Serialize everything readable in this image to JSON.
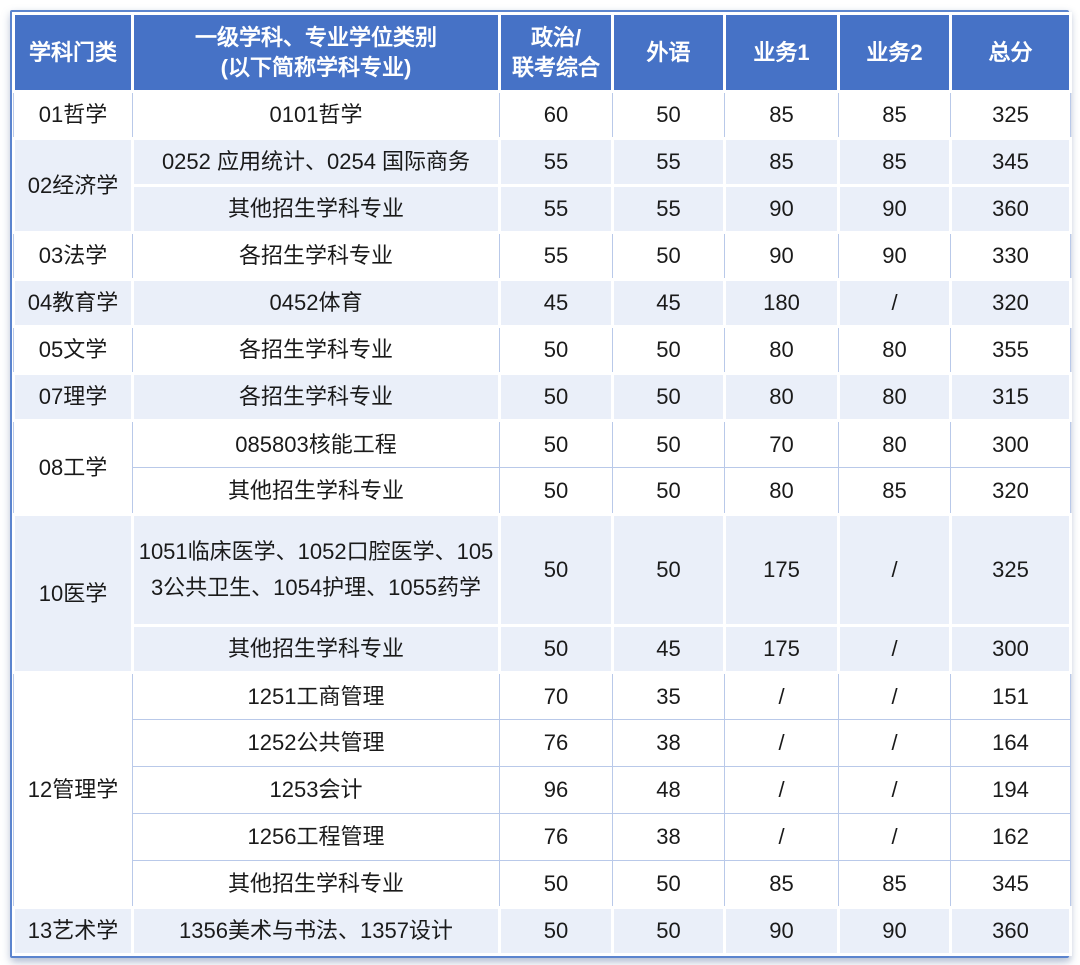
{
  "header": {
    "category": "学科门类",
    "discipline_line1": "一级学科、专业学位类别",
    "discipline_line2": "(以下简称学科专业)",
    "politics_line1": "政治/",
    "politics_line2": "联考综合",
    "foreign": "外语",
    "business1": "业务1",
    "business2": "业务2",
    "total": "总分"
  },
  "colors": {
    "header_bg": "#4672C6",
    "header_text": "#FFFFFF",
    "band_blue": "#EAEFF9",
    "band_white": "#FFFFFF",
    "grid_line": "#B9C9E9",
    "outer_border": "#5B84CE",
    "body_text": "#1A1A1A"
  },
  "chart_data": {
    "type": "table",
    "columns": [
      "学科门类",
      "一级学科、专业学位类别(以下简称学科专业)",
      "政治/联考综合",
      "外语",
      "业务1",
      "业务2",
      "总分"
    ],
    "groups": [
      {
        "category": "01哲学",
        "band": "white",
        "rows": [
          {
            "discipline": "0101哲学",
            "politics": "60",
            "foreign": "50",
            "business1": "85",
            "business2": "85",
            "total": "325"
          }
        ]
      },
      {
        "category": "02经济学",
        "band": "blue",
        "rows": [
          {
            "discipline": "0252 应用统计、0254 国际商务",
            "politics": "55",
            "foreign": "55",
            "business1": "85",
            "business2": "85",
            "total": "345"
          },
          {
            "discipline": "其他招生学科专业",
            "politics": "55",
            "foreign": "55",
            "business1": "90",
            "business2": "90",
            "total": "360"
          }
        ]
      },
      {
        "category": "03法学",
        "band": "white",
        "rows": [
          {
            "discipline": "各招生学科专业",
            "politics": "55",
            "foreign": "50",
            "business1": "90",
            "business2": "90",
            "total": "330"
          }
        ]
      },
      {
        "category": "04教育学",
        "band": "blue",
        "rows": [
          {
            "discipline": "0452体育",
            "politics": "45",
            "foreign": "45",
            "business1": "180",
            "business2": "/",
            "total": "320"
          }
        ]
      },
      {
        "category": "05文学",
        "band": "white",
        "rows": [
          {
            "discipline": "各招生学科专业",
            "politics": "50",
            "foreign": "50",
            "business1": "80",
            "business2": "80",
            "total": "355"
          }
        ]
      },
      {
        "category": "07理学",
        "band": "blue",
        "rows": [
          {
            "discipline": "各招生学科专业",
            "politics": "50",
            "foreign": "50",
            "business1": "80",
            "business2": "80",
            "total": "315"
          }
        ]
      },
      {
        "category": "08工学",
        "band": "white",
        "rows": [
          {
            "discipline": "085803核能工程",
            "politics": "50",
            "foreign": "50",
            "business1": "70",
            "business2": "80",
            "total": "300"
          },
          {
            "discipline": "其他招生学科专业",
            "politics": "50",
            "foreign": "50",
            "business1": "80",
            "business2": "85",
            "total": "320"
          }
        ]
      },
      {
        "category": "10医学",
        "band": "blue",
        "rows": [
          {
            "discipline": "1051临床医学、1052口腔医学、1053公共卫生、1054护理、1055药学",
            "tall": true,
            "politics": "50",
            "foreign": "50",
            "business1": "175",
            "business2": "/",
            "total": "325"
          },
          {
            "discipline": "其他招生学科专业",
            "politics": "50",
            "foreign": "45",
            "business1": "175",
            "business2": "/",
            "total": "300"
          }
        ]
      },
      {
        "category": "12管理学",
        "band": "white",
        "rows": [
          {
            "discipline": "1251工商管理",
            "politics": "70",
            "foreign": "35",
            "business1": "/",
            "business2": "/",
            "total": "151"
          },
          {
            "discipline": "1252公共管理",
            "politics": "76",
            "foreign": "38",
            "business1": "/",
            "business2": "/",
            "total": "164"
          },
          {
            "discipline": "1253会计",
            "politics": "96",
            "foreign": "48",
            "business1": "/",
            "business2": "/",
            "total": "194"
          },
          {
            "discipline": "1256工程管理",
            "politics": "76",
            "foreign": "38",
            "business1": "/",
            "business2": "/",
            "total": "162"
          },
          {
            "discipline": "其他招生学科专业",
            "politics": "50",
            "foreign": "50",
            "business1": "85",
            "business2": "85",
            "total": "345"
          }
        ]
      },
      {
        "category": "13艺术学",
        "band": "blue",
        "rows": [
          {
            "discipline": "1356美术与书法、1357设计",
            "politics": "50",
            "foreign": "50",
            "business1": "90",
            "business2": "90",
            "total": "360"
          }
        ]
      }
    ]
  }
}
